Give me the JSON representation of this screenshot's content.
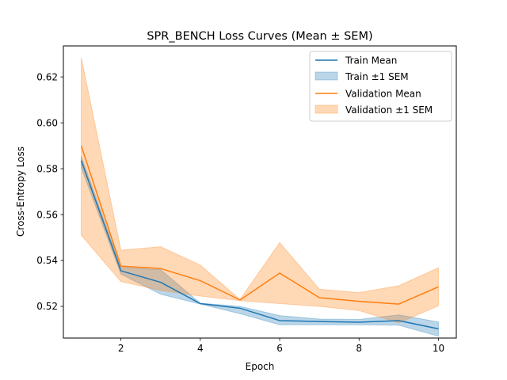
{
  "chart_data": {
    "type": "line",
    "title": "SPR_BENCH Loss Curves (Mean ± SEM)",
    "xlabel": "Epoch",
    "ylabel": "Cross-Entropy Loss",
    "xlim": [
      0.55,
      10.45
    ],
    "ylim": [
      0.5062,
      0.6335
    ],
    "xticks": [
      2,
      4,
      6,
      8,
      10
    ],
    "yticks": [
      0.52,
      0.54,
      0.56,
      0.58,
      0.6,
      0.62
    ],
    "ytick_labels": [
      "0.52",
      "0.54",
      "0.56",
      "0.58",
      "0.60",
      "0.62"
    ],
    "grid": false,
    "legend_position": "top-right",
    "x": [
      1,
      2,
      3,
      4,
      5,
      6,
      7,
      8,
      9,
      10
    ],
    "series": [
      {
        "name": "Train Mean",
        "band_name": "Train ±1 SEM",
        "color": "#1f77b4",
        "values": [
          0.5835,
          0.5355,
          0.5305,
          0.5212,
          0.5192,
          0.5138,
          0.5134,
          0.5131,
          0.5138,
          0.5102
        ],
        "upper": [
          0.5855,
          0.537,
          0.536,
          0.5214,
          0.52,
          0.516,
          0.5145,
          0.5143,
          0.5163,
          0.5132
        ],
        "lower": [
          0.5805,
          0.534,
          0.5253,
          0.521,
          0.5168,
          0.512,
          0.512,
          0.512,
          0.5118,
          0.507
        ]
      },
      {
        "name": "Validation Mean",
        "band_name": "Validation ±1 SEM",
        "color": "#ff7f0e",
        "values": [
          0.59,
          0.5375,
          0.5365,
          0.5312,
          0.5228,
          0.5345,
          0.5238,
          0.5222,
          0.521,
          0.5285
        ],
        "upper": [
          0.6285,
          0.5445,
          0.546,
          0.538,
          0.523,
          0.5478,
          0.5275,
          0.526,
          0.529,
          0.5368
        ],
        "lower": [
          0.551,
          0.5308,
          0.527,
          0.5245,
          0.5225,
          0.5212,
          0.52,
          0.5182,
          0.5128,
          0.5202
        ]
      }
    ]
  }
}
